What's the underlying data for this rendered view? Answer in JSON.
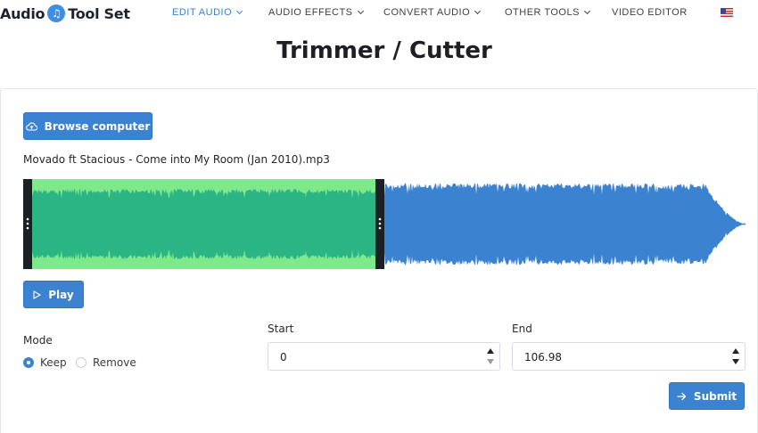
{
  "header": {
    "logo": {
      "left": "Audio",
      "right": "Tool Set",
      "badge_icon": "music-note-icon"
    },
    "nav": [
      {
        "label": "EDIT AUDIO",
        "active": true
      },
      {
        "label": "AUDIO EFFECTS",
        "active": false
      },
      {
        "label": "CONVERT AUDIO",
        "active": false
      },
      {
        "label": "OTHER TOOLS",
        "active": false
      },
      {
        "label": "VIDEO EDITOR",
        "active": false
      }
    ],
    "language_icon": "us-flag-icon"
  },
  "page": {
    "title": "Trimmer / Cutter"
  },
  "upload": {
    "button_label": "Browse computer",
    "icon": "cloud-upload-icon"
  },
  "file": {
    "name": "Movado ft Stacious - Come into My Room (Jan 2010).mp3"
  },
  "player": {
    "play_label": "Play",
    "icon": "play-icon"
  },
  "waveform": {
    "selection_color": "#2bb585",
    "selection_peak_color": "#7ee88a",
    "wave_color": "#3b82d1",
    "handle_color": "#1c2024"
  },
  "mode": {
    "label": "Mode",
    "options": [
      {
        "label": "Keep",
        "selected": true
      },
      {
        "label": "Remove",
        "selected": false
      }
    ]
  },
  "range": {
    "start_label": "Start",
    "start_value": "0",
    "end_label": "End",
    "end_value": "106.98"
  },
  "submit": {
    "label": "Submit",
    "icon": "arrow-right-icon"
  },
  "colors": {
    "accent": "#3b82d1",
    "nav_active": "#3a7fc8"
  }
}
